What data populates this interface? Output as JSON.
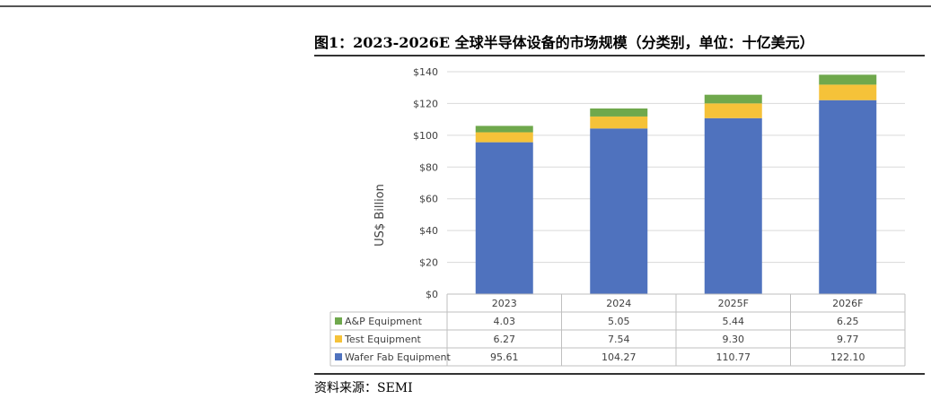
{
  "figure": {
    "title": "图1：2023-2026E 全球半导体设备的市场规模（分类别，单位：十亿美元）",
    "source": "资料来源：SEMI"
  },
  "chart_data": {
    "type": "bar",
    "stacked": true,
    "categories": [
      "2023",
      "2024",
      "2025F",
      "2026F"
    ],
    "ylabel": "US$ Billion",
    "ylim": [
      0,
      140
    ],
    "yticks": [
      0,
      20,
      40,
      60,
      80,
      100,
      120,
      140
    ],
    "ytick_labels": [
      "$0",
      "$20",
      "$40",
      "$60",
      "$80",
      "$100",
      "$120",
      "$140"
    ],
    "grid": true,
    "series": [
      {
        "name": "Wafer Fab Equipment",
        "color": "#4f72be",
        "values": [
          95.61,
          104.27,
          110.77,
          122.1
        ],
        "labels": [
          "95.61",
          "104.27",
          "110.77",
          "122.10"
        ]
      },
      {
        "name": "Test Equipment",
        "color": "#f5c239",
        "values": [
          6.27,
          7.54,
          9.3,
          9.77
        ],
        "labels": [
          "6.27",
          "7.54",
          "9.30",
          "9.77"
        ]
      },
      {
        "name": "A&P Equipment",
        "color": "#6fa84c",
        "values": [
          4.03,
          5.05,
          5.44,
          6.25
        ],
        "labels": [
          "4.03",
          "5.05",
          "5.44",
          "6.25"
        ]
      }
    ],
    "table_row_order": [
      "A&P Equipment",
      "Test Equipment",
      "Wafer Fab Equipment"
    ]
  }
}
